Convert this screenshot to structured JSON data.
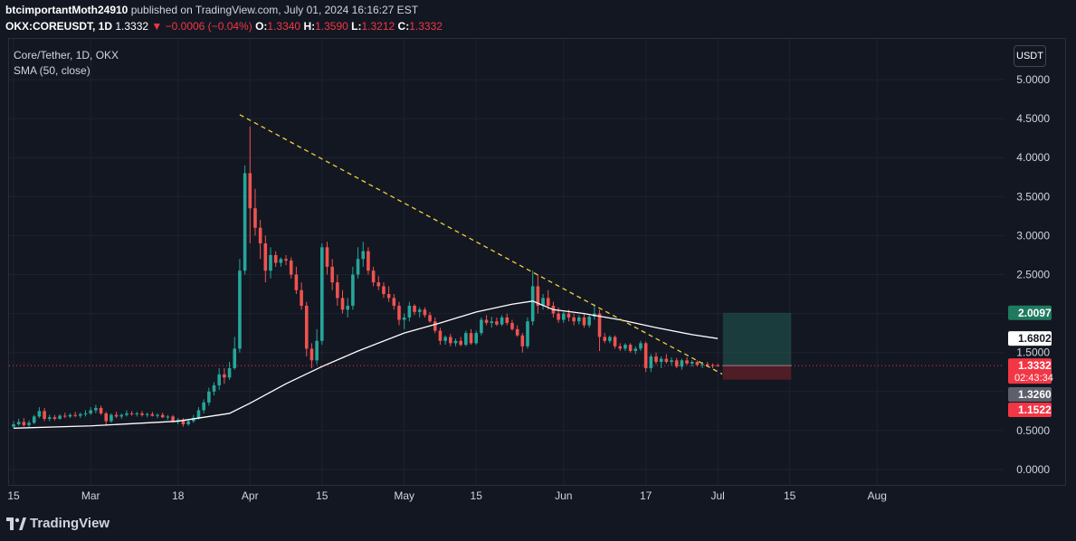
{
  "header": {
    "user": "btcimportantMoth24910",
    "published": "published on TradingView.com, July 01, 2024 16:16:27 EST",
    "symbol_line": "OKX:COREUSDT, 1D",
    "last": "1.3332",
    "change": "−0.0006 (−0.04%)",
    "o_label": "O:",
    "o": "1.3340",
    "h_label": "H:",
    "h": "1.3590",
    "l_label": "L:",
    "l": "1.3212",
    "c_label": "C:",
    "c": "1.3332"
  },
  "legend": {
    "symbol": "Core/Tether, 1D, OKX",
    "sma": "SMA (50, close)"
  },
  "currency_button": "USDT",
  "branding": {
    "name": "TradingView"
  },
  "colors": {
    "background": "#131722",
    "up": "#26a69a",
    "down": "#ef5350",
    "sma": "#ffffff",
    "trendline": "#f0d040",
    "price_line": "#f23645",
    "target_zone": "#1f4a46",
    "stop_zone": "#5b1f27"
  },
  "chart_data": {
    "type": "candlestick",
    "y_ticks": [
      "0.0000",
      "0.5000",
      "1.0000",
      "1.5000",
      "2.0000",
      "2.5000",
      "3.0000",
      "3.5000",
      "4.0000",
      "4.5000",
      "5.0000"
    ],
    "x_ticks": [
      "15",
      "Mar",
      "18",
      "Apr",
      "15",
      "May",
      "15",
      "Jun",
      "17",
      "Jul",
      "15",
      "Aug"
    ],
    "x_tick_dates": [
      "2024-02-15",
      "2024-03-01",
      "2024-03-18",
      "2024-04-01",
      "2024-04-15",
      "2024-05-01",
      "2024-05-15",
      "2024-06-01",
      "2024-06-17",
      "2024-07-01",
      "2024-07-15",
      "2024-08-01"
    ],
    "ylim": [
      0,
      5
    ],
    "price_labels": [
      {
        "text": "2.0097",
        "value": 2.0097,
        "style": "green"
      },
      {
        "text": "1.6802",
        "value": 1.6802,
        "style": "white"
      },
      {
        "text": "1.3332",
        "value": 1.3332,
        "style": "red",
        "sub": "02:43:34"
      },
      {
        "text": "1.3260",
        "value": 1.326,
        "style": "grey"
      },
      {
        "text": "1.1522",
        "value": 1.1522,
        "style": "red"
      }
    ],
    "current_price": 1.3332,
    "trendline": {
      "start": [
        "2024-03-30",
        4.55
      ],
      "end": [
        "2024-07-01",
        1.2
      ]
    },
    "position": {
      "start": "2024-07-02",
      "end": "2024-07-10",
      "entry": 1.3332,
      "target": 2.0097,
      "stop": 1.1522
    },
    "candles": [
      [
        "2024-02-15",
        0.55,
        0.62,
        0.53,
        0.58
      ],
      [
        "2024-02-16",
        0.58,
        0.65,
        0.56,
        0.61
      ],
      [
        "2024-02-17",
        0.61,
        0.66,
        0.55,
        0.57
      ],
      [
        "2024-02-18",
        0.57,
        0.63,
        0.54,
        0.6
      ],
      [
        "2024-02-19",
        0.6,
        0.7,
        0.58,
        0.68
      ],
      [
        "2024-02-20",
        0.68,
        0.8,
        0.66,
        0.75
      ],
      [
        "2024-02-21",
        0.75,
        0.79,
        0.62,
        0.65
      ],
      [
        "2024-02-22",
        0.65,
        0.7,
        0.62,
        0.67
      ],
      [
        "2024-02-23",
        0.67,
        0.7,
        0.63,
        0.65
      ],
      [
        "2024-02-24",
        0.65,
        0.71,
        0.64,
        0.69
      ],
      [
        "2024-02-25",
        0.69,
        0.73,
        0.66,
        0.68
      ],
      [
        "2024-02-26",
        0.68,
        0.72,
        0.66,
        0.7
      ],
      [
        "2024-02-27",
        0.7,
        0.74,
        0.67,
        0.69
      ],
      [
        "2024-02-28",
        0.69,
        0.73,
        0.66,
        0.71
      ],
      [
        "2024-02-29",
        0.71,
        0.76,
        0.68,
        0.72
      ],
      [
        "2024-03-01",
        0.72,
        0.8,
        0.7,
        0.76
      ],
      [
        "2024-03-02",
        0.76,
        0.83,
        0.72,
        0.79
      ],
      [
        "2024-03-03",
        0.79,
        0.82,
        0.7,
        0.72
      ],
      [
        "2024-03-04",
        0.72,
        0.74,
        0.56,
        0.62
      ],
      [
        "2024-03-05",
        0.62,
        0.72,
        0.6,
        0.7
      ],
      [
        "2024-03-06",
        0.7,
        0.74,
        0.66,
        0.68
      ],
      [
        "2024-03-07",
        0.68,
        0.72,
        0.65,
        0.7
      ],
      [
        "2024-03-08",
        0.7,
        0.76,
        0.68,
        0.72
      ],
      [
        "2024-03-09",
        0.72,
        0.75,
        0.69,
        0.71
      ],
      [
        "2024-03-10",
        0.71,
        0.74,
        0.68,
        0.72
      ],
      [
        "2024-03-11",
        0.72,
        0.75,
        0.68,
        0.7
      ],
      [
        "2024-03-12",
        0.7,
        0.73,
        0.67,
        0.71
      ],
      [
        "2024-03-13",
        0.71,
        0.74,
        0.68,
        0.69
      ],
      [
        "2024-03-14",
        0.69,
        0.72,
        0.66,
        0.7
      ],
      [
        "2024-03-15",
        0.7,
        0.73,
        0.66,
        0.67
      ],
      [
        "2024-03-16",
        0.67,
        0.7,
        0.64,
        0.68
      ],
      [
        "2024-03-17",
        0.68,
        0.7,
        0.6,
        0.62
      ],
      [
        "2024-03-18",
        0.62,
        0.66,
        0.58,
        0.64
      ],
      [
        "2024-03-19",
        0.64,
        0.66,
        0.55,
        0.58
      ],
      [
        "2024-03-20",
        0.58,
        0.64,
        0.56,
        0.62
      ],
      [
        "2024-03-21",
        0.62,
        0.7,
        0.6,
        0.66
      ],
      [
        "2024-03-22",
        0.66,
        0.8,
        0.64,
        0.76
      ],
      [
        "2024-03-23",
        0.76,
        0.9,
        0.72,
        0.86
      ],
      [
        "2024-03-24",
        0.86,
        1.05,
        0.82,
        1.0
      ],
      [
        "2024-03-25",
        1.0,
        1.12,
        0.95,
        1.08
      ],
      [
        "2024-03-26",
        1.08,
        1.3,
        1.02,
        1.22
      ],
      [
        "2024-03-27",
        1.22,
        1.3,
        1.1,
        1.18
      ],
      [
        "2024-03-28",
        1.18,
        1.38,
        1.15,
        1.3
      ],
      [
        "2024-03-29",
        1.3,
        1.7,
        1.28,
        1.55
      ],
      [
        "2024-03-30",
        1.55,
        2.7,
        1.5,
        2.55
      ],
      [
        "2024-03-31",
        2.55,
        3.9,
        2.5,
        3.8
      ],
      [
        "2024-04-01",
        3.8,
        4.4,
        2.9,
        3.35
      ],
      [
        "2024-04-02",
        3.35,
        3.6,
        3.0,
        3.1
      ],
      [
        "2024-04-03",
        3.1,
        3.2,
        2.7,
        2.9
      ],
      [
        "2024-04-04",
        2.9,
        3.0,
        2.4,
        2.55
      ],
      [
        "2024-04-05",
        2.55,
        2.85,
        2.45,
        2.75
      ],
      [
        "2024-04-06",
        2.75,
        2.8,
        2.6,
        2.65
      ],
      [
        "2024-04-07",
        2.65,
        2.72,
        2.6,
        2.7
      ],
      [
        "2024-04-08",
        2.7,
        2.75,
        2.62,
        2.68
      ],
      [
        "2024-04-09",
        2.68,
        2.72,
        2.45,
        2.5
      ],
      [
        "2024-04-10",
        2.5,
        2.6,
        2.25,
        2.3
      ],
      [
        "2024-04-11",
        2.3,
        2.4,
        2.05,
        2.1
      ],
      [
        "2024-04-12",
        2.1,
        2.15,
        1.45,
        1.55
      ],
      [
        "2024-04-13",
        1.55,
        1.62,
        1.3,
        1.4
      ],
      [
        "2024-04-14",
        1.4,
        1.8,
        1.35,
        1.65
      ],
      [
        "2024-04-15",
        1.65,
        2.9,
        1.6,
        2.85
      ],
      [
        "2024-04-16",
        2.85,
        2.92,
        2.5,
        2.6
      ],
      [
        "2024-04-17",
        2.6,
        2.7,
        2.3,
        2.4
      ],
      [
        "2024-04-18",
        2.4,
        2.5,
        2.1,
        2.2
      ],
      [
        "2024-04-19",
        2.2,
        2.3,
        2.0,
        2.05
      ],
      [
        "2024-04-20",
        2.05,
        2.2,
        1.95,
        2.1
      ],
      [
        "2024-04-21",
        2.1,
        2.6,
        2.05,
        2.5
      ],
      [
        "2024-04-22",
        2.5,
        2.85,
        2.45,
        2.7
      ],
      [
        "2024-04-23",
        2.7,
        2.92,
        2.6,
        2.8
      ],
      [
        "2024-04-24",
        2.8,
        2.85,
        2.5,
        2.55
      ],
      [
        "2024-04-25",
        2.55,
        2.6,
        2.35,
        2.4
      ],
      [
        "2024-04-26",
        2.4,
        2.48,
        2.3,
        2.35
      ],
      [
        "2024-04-27",
        2.35,
        2.4,
        2.2,
        2.25
      ],
      [
        "2024-04-28",
        2.25,
        2.35,
        2.15,
        2.2
      ],
      [
        "2024-04-29",
        2.2,
        2.25,
        2.05,
        2.1
      ],
      [
        "2024-04-30",
        2.1,
        2.15,
        1.85,
        1.92
      ],
      [
        "2024-05-01",
        1.92,
        2.0,
        1.8,
        1.95
      ],
      [
        "2024-05-02",
        1.95,
        2.15,
        1.9,
        2.1
      ],
      [
        "2024-05-03",
        2.1,
        2.12,
        1.98,
        2.02
      ],
      [
        "2024-05-04",
        2.02,
        2.08,
        1.95,
        2.05
      ],
      [
        "2024-05-05",
        2.05,
        2.08,
        1.95,
        1.98
      ],
      [
        "2024-05-06",
        1.98,
        2.02,
        1.88,
        1.9
      ],
      [
        "2024-05-07",
        1.9,
        1.95,
        1.75,
        1.78
      ],
      [
        "2024-05-08",
        1.78,
        1.82,
        1.6,
        1.65
      ],
      [
        "2024-05-09",
        1.65,
        1.72,
        1.6,
        1.7
      ],
      [
        "2024-05-10",
        1.7,
        1.74,
        1.58,
        1.62
      ],
      [
        "2024-05-11",
        1.62,
        1.68,
        1.58,
        1.65
      ],
      [
        "2024-05-12",
        1.65,
        1.7,
        1.58,
        1.6
      ],
      [
        "2024-05-13",
        1.6,
        1.78,
        1.58,
        1.75
      ],
      [
        "2024-05-14",
        1.75,
        1.8,
        1.6,
        1.62
      ],
      [
        "2024-05-15",
        1.62,
        1.78,
        1.6,
        1.75
      ],
      [
        "2024-05-16",
        1.75,
        1.95,
        1.72,
        1.92
      ],
      [
        "2024-05-17",
        1.92,
        1.98,
        1.85,
        1.88
      ],
      [
        "2024-05-18",
        1.88,
        1.96,
        1.82,
        1.9
      ],
      [
        "2024-05-19",
        1.9,
        1.95,
        1.84,
        1.86
      ],
      [
        "2024-05-20",
        1.86,
        1.98,
        1.84,
        1.95
      ],
      [
        "2024-05-21",
        1.95,
        2.0,
        1.85,
        1.88
      ],
      [
        "2024-05-22",
        1.88,
        1.92,
        1.78,
        1.8
      ],
      [
        "2024-05-23",
        1.8,
        1.85,
        1.7,
        1.72
      ],
      [
        "2024-05-24",
        1.72,
        1.75,
        1.5,
        1.58
      ],
      [
        "2024-05-25",
        1.58,
        1.95,
        1.55,
        1.9
      ],
      [
        "2024-05-26",
        1.9,
        2.55,
        1.85,
        2.35
      ],
      [
        "2024-05-27",
        2.35,
        2.5,
        2.0,
        2.1
      ],
      [
        "2024-05-28",
        2.1,
        2.25,
        2.05,
        2.2
      ],
      [
        "2024-05-29",
        2.2,
        2.3,
        2.05,
        2.1
      ],
      [
        "2024-05-30",
        2.1,
        2.15,
        1.95,
        2.0
      ],
      [
        "2024-05-31",
        2.0,
        2.08,
        1.88,
        1.92
      ],
      [
        "2024-06-01",
        1.92,
        2.02,
        1.88,
        2.0
      ],
      [
        "2024-06-02",
        2.0,
        2.05,
        1.9,
        1.95
      ],
      [
        "2024-06-03",
        1.95,
        2.0,
        1.85,
        1.9
      ],
      [
        "2024-06-04",
        1.9,
        1.98,
        1.86,
        1.95
      ],
      [
        "2024-06-05",
        1.95,
        2.0,
        1.82,
        1.85
      ],
      [
        "2024-06-06",
        1.85,
        1.98,
        1.82,
        1.96
      ],
      [
        "2024-06-07",
        1.96,
        2.12,
        1.92,
        2.0
      ],
      [
        "2024-06-08",
        2.0,
        2.05,
        1.52,
        1.7
      ],
      [
        "2024-06-09",
        1.7,
        1.75,
        1.62,
        1.65
      ],
      [
        "2024-06-10",
        1.65,
        1.72,
        1.62,
        1.7
      ],
      [
        "2024-06-11",
        1.7,
        1.72,
        1.55,
        1.58
      ],
      [
        "2024-06-12",
        1.58,
        1.62,
        1.52,
        1.55
      ],
      [
        "2024-06-13",
        1.55,
        1.62,
        1.52,
        1.6
      ],
      [
        "2024-06-14",
        1.6,
        1.62,
        1.5,
        1.52
      ],
      [
        "2024-06-15",
        1.52,
        1.58,
        1.48,
        1.55
      ],
      [
        "2024-06-16",
        1.55,
        1.65,
        1.52,
        1.62
      ],
      [
        "2024-06-17",
        1.62,
        1.64,
        1.25,
        1.3
      ],
      [
        "2024-06-18",
        1.3,
        1.48,
        1.25,
        1.45
      ],
      [
        "2024-06-19",
        1.45,
        1.5,
        1.35,
        1.38
      ],
      [
        "2024-06-20",
        1.38,
        1.45,
        1.3,
        1.42
      ],
      [
        "2024-06-21",
        1.42,
        1.48,
        1.36,
        1.38
      ],
      [
        "2024-06-22",
        1.38,
        1.44,
        1.34,
        1.4
      ],
      [
        "2024-06-23",
        1.4,
        1.43,
        1.3,
        1.32
      ],
      [
        "2024-06-24",
        1.32,
        1.42,
        1.28,
        1.4
      ],
      [
        "2024-06-25",
        1.4,
        1.44,
        1.34,
        1.36
      ],
      [
        "2024-06-26",
        1.36,
        1.4,
        1.32,
        1.38
      ],
      [
        "2024-06-27",
        1.38,
        1.4,
        1.32,
        1.34
      ],
      [
        "2024-06-28",
        1.34,
        1.38,
        1.3,
        1.35
      ],
      [
        "2024-06-29",
        1.35,
        1.38,
        1.32,
        1.34
      ],
      [
        "2024-06-30",
        1.34,
        1.36,
        1.3,
        1.33
      ],
      [
        "2024-07-01",
        1.334,
        1.359,
        1.3212,
        1.3332
      ]
    ],
    "sma_series": [
      [
        "2024-02-15",
        0.53
      ],
      [
        "2024-03-01",
        0.56
      ],
      [
        "2024-03-18",
        0.62
      ],
      [
        "2024-03-28",
        0.72
      ],
      [
        "2024-04-01",
        0.85
      ],
      [
        "2024-04-08",
        1.1
      ],
      [
        "2024-04-15",
        1.32
      ],
      [
        "2024-04-22",
        1.52
      ],
      [
        "2024-05-01",
        1.75
      ],
      [
        "2024-05-08",
        1.88
      ],
      [
        "2024-05-15",
        2.02
      ],
      [
        "2024-05-22",
        2.12
      ],
      [
        "2024-05-26",
        2.16
      ],
      [
        "2024-05-30",
        2.05
      ],
      [
        "2024-06-05",
        2.0
      ],
      [
        "2024-06-12",
        1.92
      ],
      [
        "2024-06-19",
        1.82
      ],
      [
        "2024-06-26",
        1.73
      ],
      [
        "2024-07-01",
        1.68
      ]
    ]
  }
}
